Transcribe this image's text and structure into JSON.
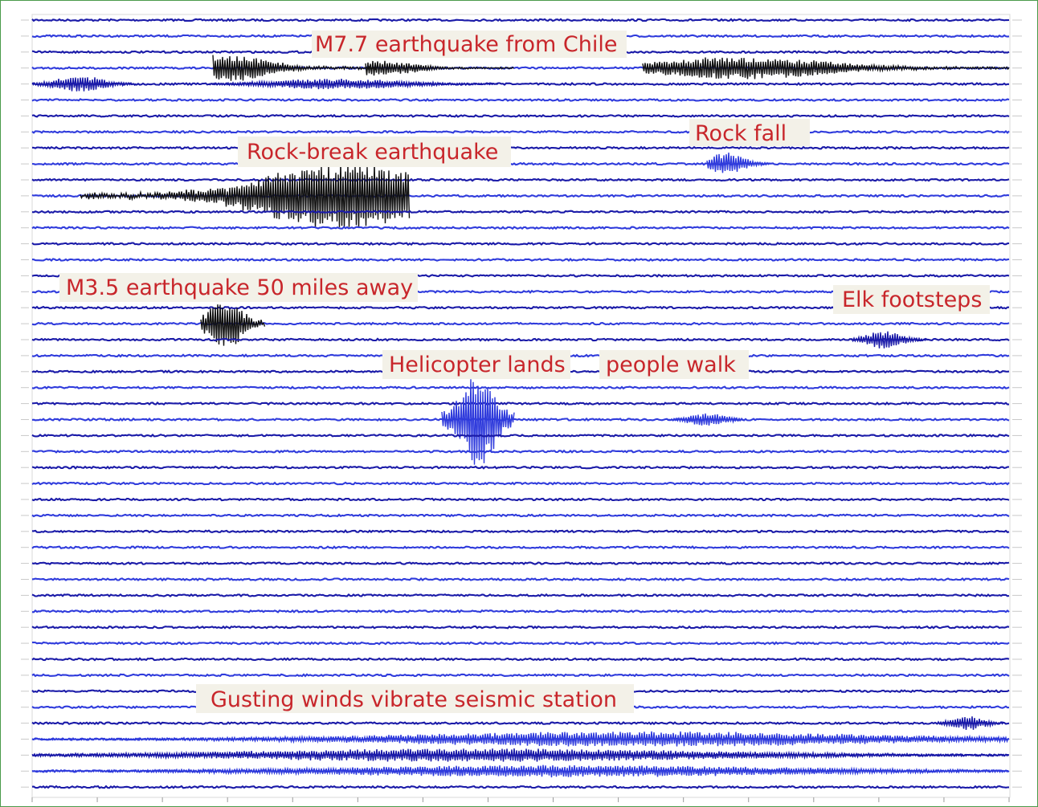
{
  "colors": {
    "trace_a": "#1a1aa8",
    "trace_b": "#2f3bdc",
    "event_black": "#111111",
    "annotation_text": "#c8262b",
    "label_bg": "#f3f1e8",
    "frame": "#4a9a4a"
  },
  "helicorder": {
    "row_count": 49,
    "trace_colors_alternate": [
      "navy",
      "blue"
    ]
  },
  "annotations": [
    {
      "id": "chile",
      "text": "M7.7 earthquake from Chile"
    },
    {
      "id": "rockfall",
      "text": "Rock fall"
    },
    {
      "id": "rockbreak",
      "text": "Rock-break earthquake"
    },
    {
      "id": "m35",
      "text": "M3.5 earthquake  50 miles away"
    },
    {
      "id": "elk",
      "text": "Elk footsteps"
    },
    {
      "id": "heli",
      "text": "Helicopter lands"
    },
    {
      "id": "walk",
      "text": "people walk"
    },
    {
      "id": "wind",
      "text": "Gusting winds vibrate seismic station"
    }
  ]
}
